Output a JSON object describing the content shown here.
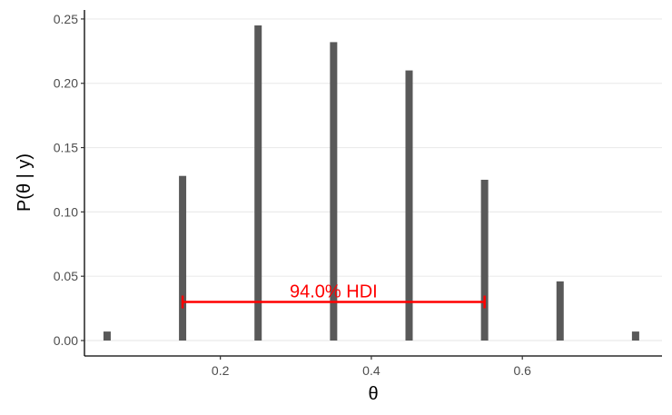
{
  "chart_data": {
    "type": "bar",
    "x": [
      0.05,
      0.15,
      0.25,
      0.35,
      0.45,
      0.55,
      0.65,
      0.75
    ],
    "values": [
      0.007,
      0.128,
      0.245,
      0.232,
      0.21,
      0.125,
      0.046,
      0.007
    ],
    "xlabel": "θ",
    "ylabel": "P(θ | y)",
    "xlim": [
      0.02,
      0.785
    ],
    "ylim": [
      -0.012,
      0.257
    ],
    "xticks": [
      0.2,
      0.4,
      0.6
    ],
    "xtick_labels": [
      "0.2",
      "0.4",
      "0.6"
    ],
    "yticks": [
      0.0,
      0.05,
      0.1,
      0.15,
      0.2,
      0.25
    ],
    "ytick_labels": [
      "0.00",
      "0.05",
      "0.10",
      "0.15",
      "0.20",
      "0.25"
    ],
    "grid": "horizontal major",
    "bar_color": "#595959",
    "hdi": {
      "lower": 0.15,
      "upper": 0.55,
      "y": 0.03,
      "label": "94.0% HDI",
      "color": "#ff0000"
    }
  }
}
